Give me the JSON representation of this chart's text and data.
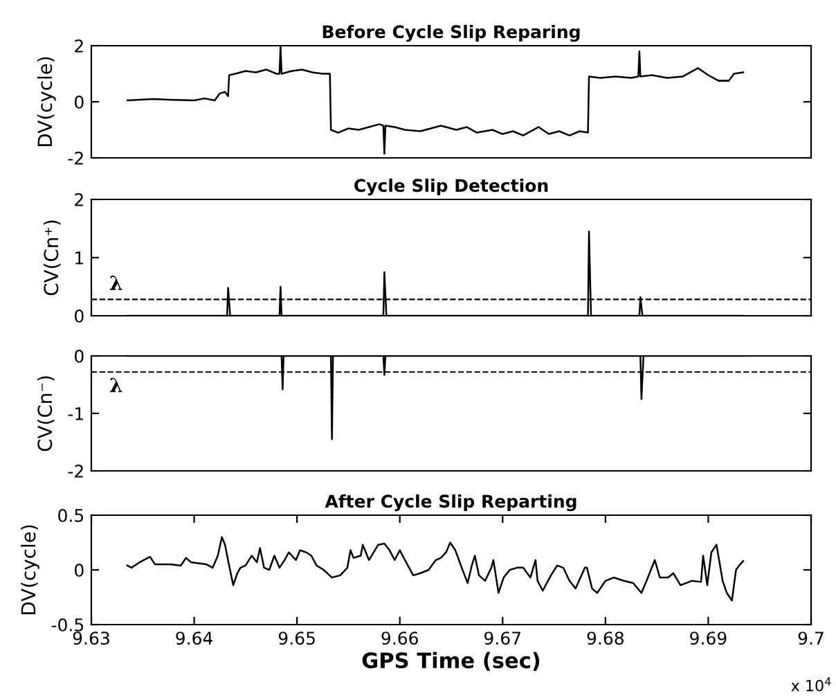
{
  "chart_data": [
    {
      "type": "line",
      "title": "Before Cycle Slip Reparing",
      "ylabel": "DV(cycle)",
      "xlim": [
        9.63,
        9.7
      ],
      "ylim": [
        -2,
        2
      ],
      "yticks": [
        -2,
        0,
        2
      ],
      "tick_labels": "y",
      "grid": false,
      "legend": false,
      "series": [
        {
          "color": "#000000",
          "x": [
            9.6335,
            9.636,
            9.638,
            9.64,
            9.641,
            9.642,
            9.6425,
            9.643,
            9.6433,
            9.6434,
            9.644,
            9.645,
            9.646,
            9.647,
            9.648,
            9.6483,
            9.6484,
            9.6485,
            9.6495,
            9.6505,
            9.6515,
            9.6525,
            9.6532,
            9.6533,
            9.654,
            9.655,
            9.656,
            9.657,
            9.658,
            9.6584,
            9.6585,
            9.6586,
            9.6595,
            9.6605,
            9.662,
            9.664,
            9.6655,
            9.6665,
            9.6675,
            9.669,
            9.67,
            9.671,
            9.672,
            9.6735,
            9.6745,
            9.6755,
            9.6765,
            9.6775,
            9.6783,
            9.6784,
            9.6795,
            9.681,
            9.6825,
            9.6832,
            9.6833,
            9.6834,
            9.6845,
            9.686,
            9.6875,
            9.689,
            9.69,
            9.691,
            9.692,
            9.6925,
            9.6934
          ],
          "values": [
            0.05,
            0.1,
            0.07,
            0.05,
            0.12,
            0.05,
            0.3,
            0.35,
            0.2,
            0.95,
            1.0,
            1.1,
            1.05,
            1.15,
            1.0,
            1.0,
            2.0,
            1.0,
            1.1,
            1.15,
            1.05,
            1.0,
            1.0,
            -1.0,
            -1.1,
            -0.95,
            -1.0,
            -0.9,
            -0.8,
            -0.85,
            -1.85,
            -0.85,
            -0.9,
            -1.0,
            -1.05,
            -0.85,
            -1.0,
            -0.9,
            -1.1,
            -1.0,
            -1.15,
            -1.05,
            -1.2,
            -0.9,
            -1.15,
            -1.05,
            -1.2,
            -1.05,
            -1.1,
            0.9,
            0.85,
            0.9,
            0.85,
            0.9,
            1.8,
            0.9,
            0.95,
            0.85,
            0.9,
            1.2,
            0.95,
            0.75,
            0.75,
            1.0,
            1.05
          ]
        }
      ]
    },
    {
      "type": "line",
      "title": "Cycle Slip Detection",
      "ylabel": "CV(Cn⁺)",
      "xlim": [
        9.63,
        9.7
      ],
      "ylim": [
        0,
        2
      ],
      "yticks": [
        0,
        1,
        2
      ],
      "tick_labels": "y",
      "grid": false,
      "legend": false,
      "ref_lines": [
        {
          "axis": "y",
          "value": 0.28,
          "label": "λ",
          "color": "#000000",
          "line_style": "dashed"
        }
      ],
      "series": [
        {
          "color": "#000000",
          "x": [
            9.6335,
            9.6432,
            9.6433,
            9.6434,
            9.6435,
            9.6483,
            9.6484,
            9.6485,
            9.6584,
            9.6585,
            9.6586,
            9.6587,
            9.6783,
            9.6784,
            9.6785,
            9.6786,
            9.6833,
            9.6834,
            9.6835,
            9.6836,
            9.6934
          ],
          "values": [
            0,
            0,
            0.48,
            0.25,
            0,
            0,
            0.5,
            0,
            0,
            0.75,
            0.35,
            0,
            0,
            1.45,
            0.7,
            0,
            0,
            0.32,
            0.15,
            0,
            0
          ]
        }
      ]
    },
    {
      "type": "line",
      "ylabel": "CV(Cn⁻)",
      "xlim": [
        9.63,
        9.7
      ],
      "ylim": [
        -2,
        0
      ],
      "yticks": [
        -2,
        -1,
        0
      ],
      "tick_labels": "y",
      "grid": false,
      "legend": false,
      "ref_lines": [
        {
          "axis": "y",
          "value": -0.28,
          "label": "λ",
          "color": "#000000",
          "line_style": "dashed"
        }
      ],
      "series": [
        {
          "color": "#000000",
          "x": [
            9.6335,
            9.6485,
            9.6486,
            9.6487,
            9.6533,
            9.6534,
            9.6535,
            9.6584,
            9.6585,
            9.6586,
            9.6834,
            9.6835,
            9.6836,
            9.6837,
            9.6934
          ],
          "values": [
            0,
            0,
            -0.58,
            0,
            0,
            -1.45,
            0,
            0,
            -0.33,
            0,
            0,
            -0.75,
            -0.38,
            0,
            0
          ]
        }
      ]
    },
    {
      "type": "line",
      "title": "After Cycle Slip Reparting",
      "xlabel": "GPS Time (sec)",
      "ylabel": "DV(cycle)",
      "xlim": [
        9.63,
        9.7
      ],
      "ylim": [
        -0.5,
        0.5
      ],
      "yticks": [
        -0.5,
        0,
        0.5
      ],
      "grid": false,
      "legend": false,
      "xticks": [
        9.63,
        9.64,
        9.65,
        9.66,
        9.67,
        9.68,
        9.69,
        9.7
      ],
      "annotations": [
        "x 10$^{4}$"
      ],
      "series": [
        {
          "color": "#000000",
          "x": [
            9.6335,
            9.6339,
            9.6347,
            9.6357,
            9.6362,
            9.6377,
            9.6387,
            9.6392,
            9.6397,
            9.6412,
            9.6418,
            9.6423,
            9.6427,
            9.643,
            9.6434,
            9.6438,
            9.6442,
            9.6445,
            9.645,
            9.6456,
            9.6461,
            9.6464,
            9.6468,
            9.6473,
            9.6478,
            9.6483,
            9.6488,
            9.6492,
            9.6499,
            9.6503,
            9.6509,
            9.6514,
            9.6519,
            9.6526,
            9.6534,
            9.6542,
            9.6549,
            9.6552,
            9.6555,
            9.6562,
            9.6564,
            9.657,
            9.6579,
            9.6585,
            9.659,
            9.6595,
            9.66,
            9.6605,
            9.6613,
            9.662,
            9.6628,
            9.6635,
            9.664,
            9.6645,
            9.6649,
            9.6654,
            9.6661,
            9.6666,
            9.667,
            9.6673,
            9.6677,
            9.6683,
            9.6689,
            9.6691,
            9.6696,
            9.6701,
            9.6707,
            9.6714,
            9.672,
            9.6727,
            9.6732,
            9.6734,
            9.6739,
            9.6747,
            9.6753,
            9.6759,
            9.6765,
            9.6771,
            9.678,
            9.6782,
            9.6787,
            9.6792,
            9.68,
            9.6808,
            9.6818,
            9.6827,
            9.6835,
            9.684,
            9.6848,
            9.6853,
            9.6861,
            9.6866,
            9.6873,
            9.6884,
            9.6893,
            9.6895,
            9.6899,
            9.6903,
            9.6908,
            9.6914,
            9.6918,
            9.6923,
            9.6927,
            9.693,
            9.6934
          ],
          "values": [
            0.04,
            0.02,
            0.07,
            0.12,
            0.05,
            0.05,
            0.04,
            0.11,
            0.07,
            0.05,
            0.02,
            0.13,
            0.3,
            0.23,
            0.04,
            -0.14,
            -0.03,
            0.02,
            0.04,
            0.13,
            0.07,
            0.2,
            0.02,
            0,
            0.13,
            0.02,
            0.09,
            0.16,
            0.09,
            0.18,
            0.16,
            0.13,
            0.04,
            0,
            -0.07,
            -0.05,
            0.02,
            0.18,
            0.11,
            0.13,
            0.23,
            0.09,
            0.23,
            0.24,
            0.18,
            0.09,
            0.18,
            0.09,
            -0.05,
            -0.03,
            0,
            0.09,
            0.11,
            0.16,
            0.25,
            0.18,
            0,
            -0.12,
            0.04,
            0.13,
            -0.05,
            -0.1,
            0.02,
            0.09,
            -0.21,
            -0.07,
            0,
            0.02,
            0.02,
            -0.07,
            0.09,
            -0.1,
            -0.19,
            -0.05,
            0.04,
            0.02,
            -0.1,
            -0.17,
            0.02,
            0.02,
            -0.17,
            -0.21,
            -0.1,
            -0.07,
            -0.1,
            -0.12,
            -0.21,
            -0.1,
            0.09,
            -0.07,
            -0.07,
            -0.03,
            -0.14,
            -0.1,
            -0.11,
            0.13,
            -0.14,
            0.16,
            0.23,
            -0.1,
            -0.21,
            -0.28,
            0,
            0.04,
            0.08
          ]
        }
      ]
    }
  ]
}
